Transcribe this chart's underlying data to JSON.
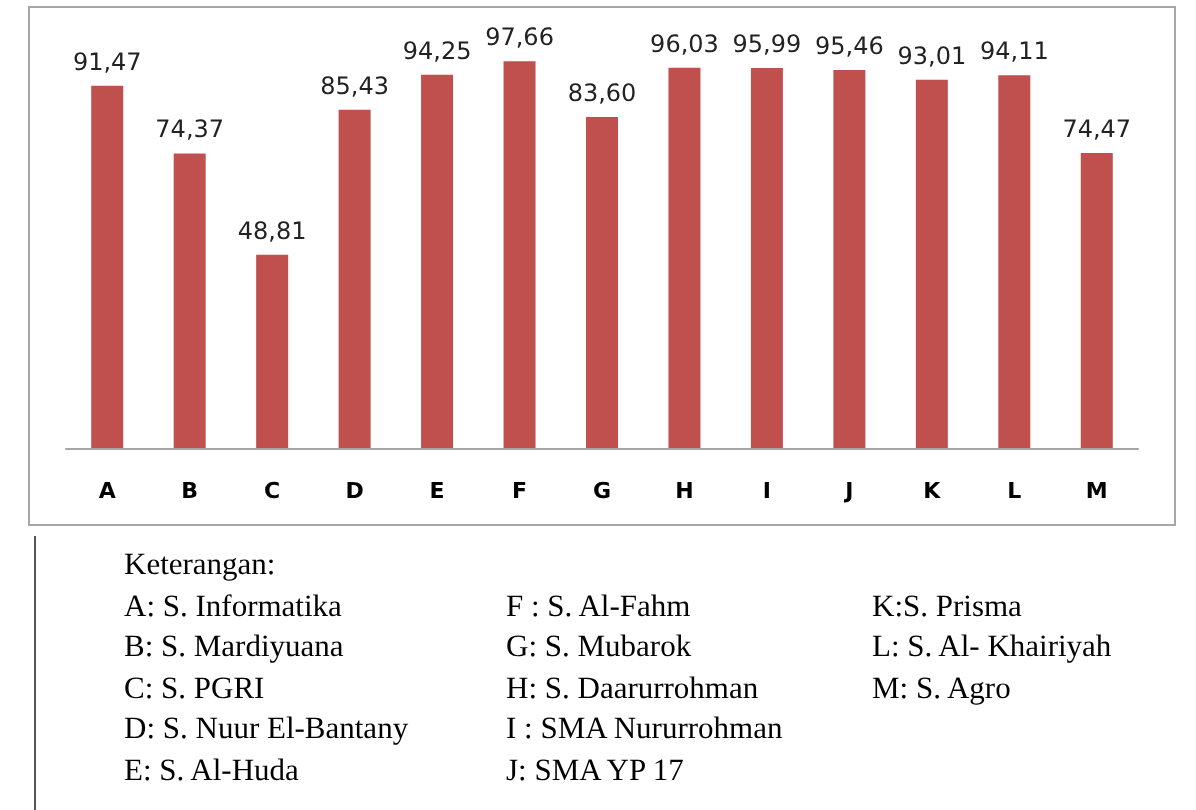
{
  "chart_data": {
    "type": "bar",
    "categories": [
      "A",
      "B",
      "C",
      "D",
      "E",
      "F",
      "G",
      "H",
      "I",
      "J",
      "K",
      "L",
      "M"
    ],
    "values": [
      91.47,
      74.37,
      48.81,
      85.43,
      94.25,
      97.66,
      83.6,
      96.03,
      95.99,
      95.46,
      93.01,
      94.11,
      74.47
    ],
    "value_labels": [
      "91,47",
      "74,37",
      "48,81",
      "85,43",
      "94,25",
      "97,66",
      "83,60",
      "96,03",
      "95,99",
      "95,46",
      "93,01",
      "94,11",
      "74,47"
    ],
    "color": "#c0504d",
    "grid": false,
    "annotations": [
      "Keterangan:",
      "A: S. Informatika",
      "B: S. Mardiyuana",
      "C: S. PGRI",
      "D: S. Nuur El-Bantany",
      "E: S. Al-Huda",
      "F : S. Al-Fahm",
      "G: S. Mubarok",
      "H: S. Daarurrohman",
      "I : SMA Nururrohman",
      "J: SMA YP 17",
      "K:S. Prisma",
      "L: S. Al- Khairiyah",
      "M: S. Agro"
    ]
  }
}
